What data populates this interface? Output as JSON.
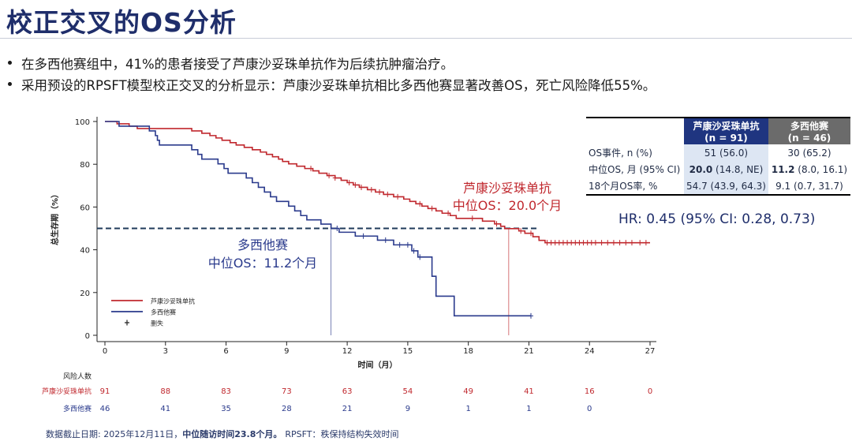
{
  "title": "校正交叉的OS分析",
  "bullets": [
    "在多西他赛组中，41%的患者接受了芦康沙妥珠单抗作为后续抗肿瘤治疗。",
    "采用预设的RPSFT模型校正交叉的分析显示：芦康沙妥珠单抗相比多西他赛显著改善OS，死亡风险降低55%。"
  ],
  "table": {
    "headers": [
      {
        "name": "芦康沙妥珠单抗",
        "n": "(n = 91)"
      },
      {
        "name": "多西他赛",
        "n": "(n = 46)"
      }
    ],
    "rows": [
      {
        "label": "OS事件, n (%)",
        "a": "51 (56.0)",
        "b": "30 (65.2)",
        "bold": false
      },
      {
        "label": "中位OS, 月 (95% CI)",
        "a_bold": "20.0",
        "a_rest": " (14.8, NE)",
        "b_bold": "11.2",
        "b_rest": " (8.0, 16.1)",
        "bold": true
      },
      {
        "label": "18个月OS率, %",
        "a": "54.7 (43.9, 64.3)",
        "b": "9.1 (0.7, 31.7)",
        "bold": false
      }
    ]
  },
  "hr_text": "HR: 0.45 (95% CI: 0.28, 0.73)",
  "footnote": {
    "part1": "数据截止日期: 2025年12月11日，",
    "part2": "中位随访时间23.8个月。",
    "part3": "RPSFT：秩保持结构失效时间"
  },
  "colors": {
    "arm_a": "#c0282e",
    "arm_b": "#2a3a8c",
    "reference": "#1f3a5a"
  },
  "chart_data": {
    "type": "line",
    "subtype": "kaplan-meier",
    "xlabel": "时间（月）",
    "ylabel": "总生存期（%）",
    "xlim": [
      0,
      27
    ],
    "ylim": [
      0,
      100
    ],
    "xticks": [
      0,
      3,
      6,
      9,
      12,
      15,
      18,
      21,
      24,
      27
    ],
    "yticks": [
      0,
      20,
      40,
      60,
      80,
      100
    ],
    "grid": false,
    "legend_position": "bottom-left",
    "legend": [
      {
        "label": "芦康沙妥珠单抗",
        "kind": "line",
        "color": "#c0282e"
      },
      {
        "label": "多西他赛",
        "kind": "line",
        "color": "#2a3a8c"
      },
      {
        "label": "删失",
        "kind": "plus",
        "color": "#222222"
      }
    ],
    "reference_line": {
      "y": 50
    },
    "series": [
      {
        "name": "芦康沙妥珠单抗",
        "color": "#c0282e",
        "steps": [
          [
            0,
            100
          ],
          [
            0.6,
            98.9
          ],
          [
            1.2,
            97.8
          ],
          [
            1.6,
            96.7
          ],
          [
            4.3,
            95.6
          ],
          [
            4.8,
            94.5
          ],
          [
            5.2,
            93.4
          ],
          [
            5.5,
            92.3
          ],
          [
            5.8,
            91.2
          ],
          [
            6.2,
            90.1
          ],
          [
            6.5,
            89
          ],
          [
            6.9,
            87.9
          ],
          [
            7.3,
            86.8
          ],
          [
            7.7,
            85.7
          ],
          [
            8,
            84.6
          ],
          [
            8.3,
            83.5
          ],
          [
            8.6,
            82.4
          ],
          [
            8.8,
            81.3
          ],
          [
            9.1,
            80.2
          ],
          [
            9.5,
            79.1
          ],
          [
            9.9,
            78
          ],
          [
            10.3,
            76.9
          ],
          [
            10.6,
            75.8
          ],
          [
            11,
            74.7
          ],
          [
            11.4,
            73.6
          ],
          [
            11.7,
            72.5
          ],
          [
            12,
            71.4
          ],
          [
            12.3,
            70.3
          ],
          [
            12.6,
            69.2
          ],
          [
            13,
            68.1
          ],
          [
            13.4,
            67
          ],
          [
            13.8,
            65.9
          ],
          [
            14.3,
            64.8
          ],
          [
            14.8,
            63.7
          ],
          [
            15.1,
            62.6
          ],
          [
            15.4,
            61.5
          ],
          [
            15.7,
            60.4
          ],
          [
            16,
            59.3
          ],
          [
            16.4,
            58.2
          ],
          [
            16.7,
            57.1
          ],
          [
            17.1,
            56
          ],
          [
            17.4,
            54.7
          ],
          [
            18.7,
            53.4
          ],
          [
            19.3,
            52.1
          ],
          [
            19.6,
            51
          ],
          [
            19.8,
            49.9
          ],
          [
            20.5,
            48.8
          ],
          [
            20.8,
            47.7
          ],
          [
            21.2,
            46.1
          ],
          [
            21.5,
            44.4
          ],
          [
            21.8,
            43.3
          ],
          [
            27,
            43.3
          ]
        ],
        "censors": [
          10.2,
          11.1,
          11.4,
          12.1,
          12.4,
          12.7,
          13.2,
          13.6,
          14,
          14.5,
          15.6,
          16.2,
          17,
          18.2,
          19.4,
          20.6,
          21.1,
          21.9,
          22.1,
          22.3,
          22.5,
          22.7,
          22.9,
          23.1,
          23.3,
          23.5,
          23.7,
          23.9,
          24.1,
          24.3,
          24.6,
          24.9,
          25.2,
          25.5,
          25.8,
          26.1,
          26.5,
          26.8
        ],
        "median_os": 20.0
      },
      {
        "name": "多西他赛",
        "color": "#2a3a8c",
        "steps": [
          [
            0,
            100
          ],
          [
            0.7,
            97.8
          ],
          [
            2.2,
            95.6
          ],
          [
            2.5,
            93.4
          ],
          [
            2.6,
            91.2
          ],
          [
            2.7,
            89
          ],
          [
            4.3,
            86.8
          ],
          [
            4.6,
            84.6
          ],
          [
            4.8,
            82.4
          ],
          [
            5.6,
            80.2
          ],
          [
            5.9,
            78
          ],
          [
            6.1,
            75.8
          ],
          [
            7,
            73.6
          ],
          [
            7.3,
            71.4
          ],
          [
            7.6,
            69.2
          ],
          [
            7.9,
            67
          ],
          [
            8.2,
            64.8
          ],
          [
            8.5,
            62.6
          ],
          [
            9.1,
            60.4
          ],
          [
            9.4,
            58.2
          ],
          [
            9.7,
            56
          ],
          [
            10,
            54
          ],
          [
            10.7,
            52
          ],
          [
            11.2,
            50
          ],
          [
            11.6,
            48.2
          ],
          [
            12.4,
            46.4
          ],
          [
            13.5,
            44.5
          ],
          [
            14.3,
            42.3
          ],
          [
            15.2,
            39.5
          ],
          [
            15.5,
            36.6
          ],
          [
            16.2,
            27.6
          ],
          [
            16.4,
            18.3
          ],
          [
            17.3,
            9.1
          ],
          [
            21.1,
            9.1
          ]
        ],
        "censors": [
          11.5,
          12.8,
          13.9,
          14.6,
          15.0,
          15.3,
          15.6,
          21.1
        ],
        "median_os": 11.2
      }
    ],
    "annotations": [
      {
        "text_line1": "芦康沙妥珠单抗",
        "text_line2": "中位OS：20.0个月",
        "series": 0
      },
      {
        "text_line1": "多西他赛",
        "text_line2": "中位OS：11.2个月",
        "series": 1
      }
    ],
    "risk_table": {
      "title": "风险人数",
      "times": [
        0,
        3,
        6,
        9,
        12,
        15,
        18,
        21,
        24,
        27
      ],
      "rows": [
        {
          "label": "芦康沙妥珠单抗",
          "values": [
            91,
            88,
            83,
            73,
            63,
            54,
            49,
            41,
            16,
            0
          ],
          "color": "#c0282e"
        },
        {
          "label": "多西他赛",
          "values": [
            46,
            41,
            35,
            28,
            21,
            9,
            1,
            1,
            0,
            null
          ],
          "color": "#2a3a8c"
        }
      ]
    }
  }
}
